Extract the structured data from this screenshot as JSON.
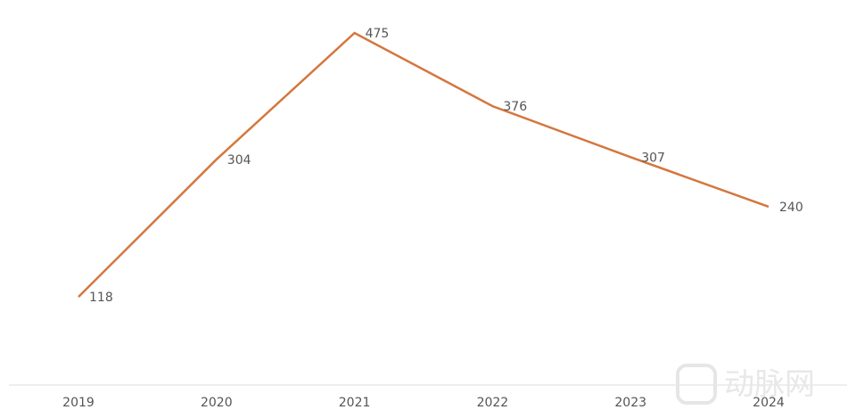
{
  "chart_data": {
    "type": "line",
    "categories": [
      "2019",
      "2020",
      "2021",
      "2022",
      "2023",
      "2024"
    ],
    "series": [
      {
        "color": "#d4773f",
        "values": [
          118,
          304,
          475,
          376,
          307,
          240
        ]
      }
    ],
    "watermark": "动脉网"
  }
}
